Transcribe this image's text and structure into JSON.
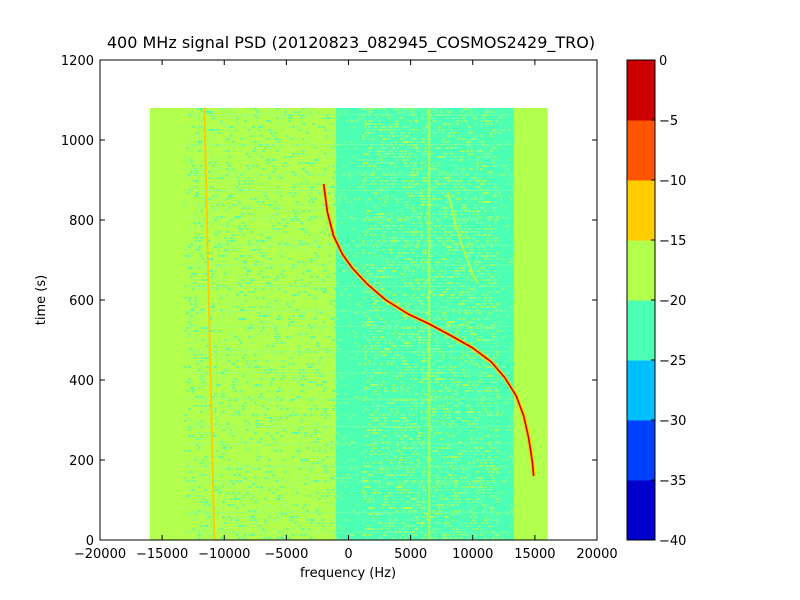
{
  "chart_data": {
    "type": "heatmap",
    "title": "400 MHz signal PSD (20120823_082945_COSMOS2429_TRO)",
    "xlabel": "frequency (Hz)",
    "ylabel": "time (s)",
    "xlim": [
      -20000,
      20000
    ],
    "ylim": [
      0,
      1200
    ],
    "xticks": [
      -20000,
      -15000,
      -10000,
      -5000,
      0,
      5000,
      10000,
      15000,
      20000
    ],
    "yticks": [
      0,
      200,
      400,
      600,
      800,
      1000,
      1200
    ],
    "data_extent": {
      "x": [
        -16000,
        16000
      ],
      "y": [
        0,
        1080
      ]
    },
    "background_levels": [
      {
        "x_range": [
          -16000,
          -13200
        ],
        "level": -18
      },
      {
        "x_range": [
          -13200,
          -1000
        ],
        "level": -19
      },
      {
        "x_range": [
          -1000,
          1000
        ],
        "level": -20
      },
      {
        "x_range": [
          1000,
          12000
        ],
        "level": -22
      },
      {
        "x_range": [
          12000,
          13300
        ],
        "level": -20
      },
      {
        "x_range": [
          13300,
          16000
        ],
        "level": -17
      }
    ],
    "vertical_lines": [
      {
        "x_top": -11600,
        "x_bottom": -10800,
        "level": -10
      },
      {
        "x_top": 6500,
        "x_bottom": 6500,
        "level": -16
      }
    ],
    "signal_trace": {
      "level": -3,
      "points": [
        [
          -2000,
          890
        ],
        [
          -1700,
          820
        ],
        [
          -1200,
          760
        ],
        [
          -500,
          715
        ],
        [
          300,
          680
        ],
        [
          1500,
          640
        ],
        [
          3000,
          600
        ],
        [
          4800,
          565
        ],
        [
          6500,
          540
        ],
        [
          8300,
          510
        ],
        [
          10000,
          480
        ],
        [
          11500,
          445
        ],
        [
          12600,
          405
        ],
        [
          13500,
          360
        ],
        [
          14100,
          310
        ],
        [
          14500,
          255
        ],
        [
          14800,
          195
        ],
        [
          14900,
          160
        ]
      ]
    },
    "faint_trace": {
      "level": -18,
      "points": [
        [
          8000,
          870
        ],
        [
          8600,
          790
        ],
        [
          9200,
          730
        ],
        [
          9800,
          680
        ],
        [
          10400,
          640
        ]
      ]
    },
    "colorbar": {
      "min": -40,
      "max": 0,
      "ticks": [
        0,
        -5,
        -10,
        -15,
        -20,
        -25,
        -30,
        -35,
        -40
      ],
      "levels": [
        {
          "from": -40,
          "to": -35,
          "color": "#0000cc"
        },
        {
          "from": -35,
          "to": -30,
          "color": "#0040ff"
        },
        {
          "from": -30,
          "to": -25,
          "color": "#00bfff"
        },
        {
          "from": -25,
          "to": -20,
          "color": "#4dffb3"
        },
        {
          "from": -20,
          "to": -15,
          "color": "#b3ff4d"
        },
        {
          "from": -15,
          "to": -10,
          "color": "#ffcc00"
        },
        {
          "from": -10,
          "to": -5,
          "color": "#ff5500"
        },
        {
          "from": -5,
          "to": 0,
          "color": "#cc0000"
        }
      ]
    }
  }
}
